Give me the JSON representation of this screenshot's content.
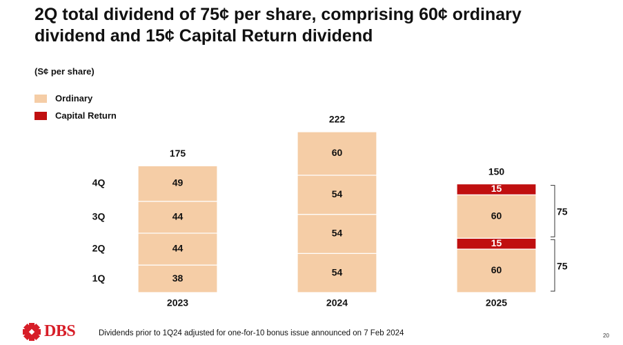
{
  "slide": {
    "title_line1": "2Q total dividend of 75¢ per share, comprising 60¢ ordinary",
    "title_line2": "dividend and 15¢ Capital Return dividend",
    "unit_label": "(S¢ per share)",
    "footnote": "Dividends prior to 1Q24 adjusted for one-for-10 bonus issue announced on 7 Feb 2024",
    "page_number": "20",
    "logo_text": "DBS"
  },
  "legend": [
    {
      "label": "Ordinary",
      "color": "#f5cda6"
    },
    {
      "label": "Capital Return",
      "color": "#c00f0f"
    }
  ],
  "colors": {
    "ordinary": "#f5cda6",
    "capital_return": "#c00f0f",
    "brand": "#d71e28"
  },
  "chart_data": {
    "type": "bar",
    "stacked": true,
    "categories": [
      "2023",
      "2024",
      "2025"
    ],
    "quarter_labels": [
      "1Q",
      "2Q",
      "3Q",
      "4Q"
    ],
    "bars": [
      {
        "category": "2023",
        "total": 175,
        "segments": [
          {
            "quarter": "1Q",
            "series": "Ordinary",
            "value": 38
          },
          {
            "quarter": "2Q",
            "series": "Ordinary",
            "value": 44
          },
          {
            "quarter": "3Q",
            "series": "Ordinary",
            "value": 44
          },
          {
            "quarter": "4Q",
            "series": "Ordinary",
            "value": 49
          }
        ]
      },
      {
        "category": "2024",
        "total": 222,
        "segments": [
          {
            "quarter": "1Q",
            "series": "Ordinary",
            "value": 54
          },
          {
            "quarter": "2Q",
            "series": "Ordinary",
            "value": 54
          },
          {
            "quarter": "3Q",
            "series": "Ordinary",
            "value": 54
          },
          {
            "quarter": "4Q",
            "series": "Ordinary",
            "value": 60
          }
        ]
      },
      {
        "category": "2025",
        "total": 150,
        "segments": [
          {
            "quarter": "1Q",
            "series": "Ordinary",
            "value": 60
          },
          {
            "quarter": "1Q",
            "series": "Capital Return",
            "value": 15
          },
          {
            "quarter": "2Q",
            "series": "Ordinary",
            "value": 60
          },
          {
            "quarter": "2Q",
            "series": "Capital Return",
            "value": 15
          }
        ]
      }
    ],
    "brackets": [
      {
        "category": "2025",
        "quarter": "1Q",
        "value": 75
      },
      {
        "category": "2025",
        "quarter": "2Q",
        "value": 75
      }
    ],
    "grid": false,
    "legend_position": "top-left"
  }
}
